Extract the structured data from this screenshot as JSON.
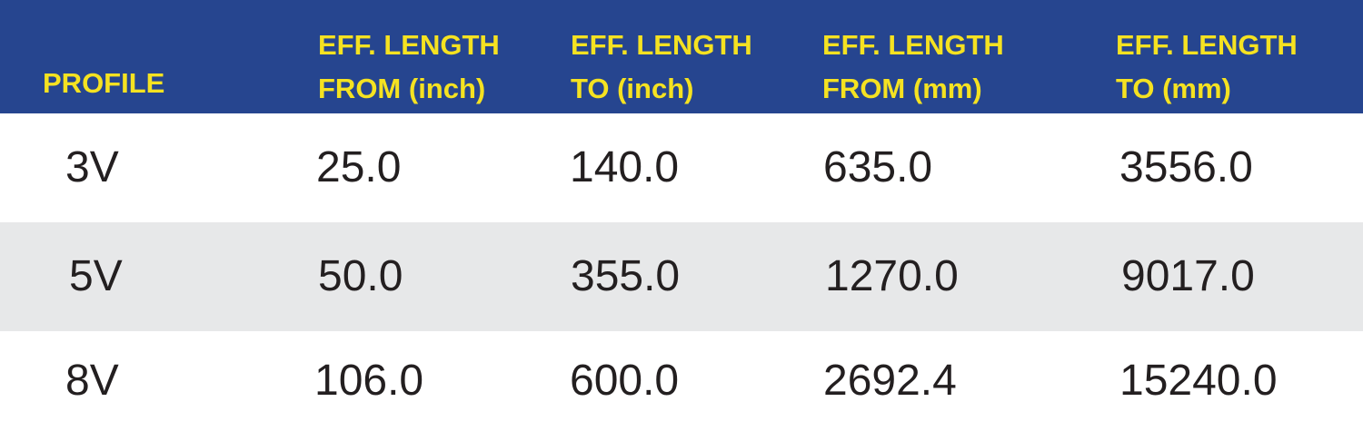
{
  "header": {
    "profile": "PROFILE",
    "col1": [
      "EFF. LENGTH",
      "FROM (inch)"
    ],
    "col2": [
      "EFF. LENGTH",
      "TO (inch)"
    ],
    "col3": [
      "EFF. LENGTH",
      "FROM (mm)"
    ],
    "col4": [
      "EFF. LENGTH",
      "TO (mm)"
    ]
  },
  "rows": [
    {
      "profile": "3V",
      "from_inch": "25.0",
      "to_inch": "140.0",
      "from_mm": "635.0",
      "to_mm": "3556.0"
    },
    {
      "profile": "5V",
      "from_inch": "50.0",
      "to_inch": "355.0",
      "from_mm": "1270.0",
      "to_mm": "9017.0"
    },
    {
      "profile": "8V",
      "from_inch": "106.0",
      "to_inch": "600.0",
      "from_mm": "2692.4",
      "to_mm": "15240.0"
    }
  ],
  "colors": {
    "header_bg": "#26458f",
    "header_text": "#f5e221",
    "row_alt": "#e7e8e9",
    "body_text": "#231f20"
  }
}
